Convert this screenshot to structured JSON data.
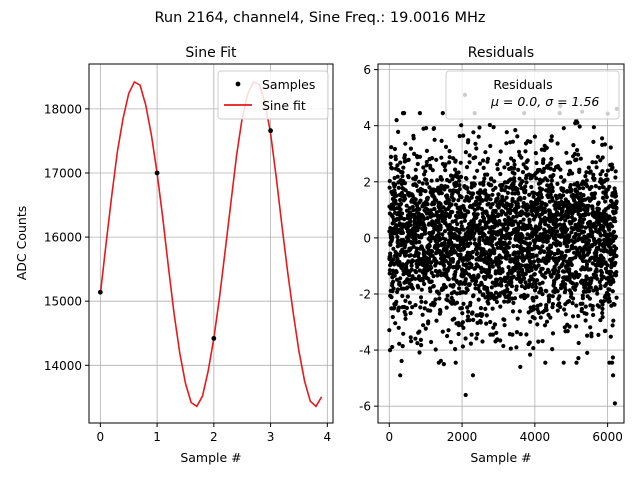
{
  "figure": {
    "suptitle": "Run 2164, channel4, Sine Freq.: 19.0016 MHz"
  },
  "chart_data": [
    {
      "type": "line",
      "title": "Sine Fit",
      "xlabel": "Sample #",
      "ylabel": "ADC Counts",
      "xlim": [
        -0.2,
        4.1
      ],
      "ylim": [
        13100,
        18700
      ],
      "xticks": [
        0,
        1,
        2,
        3,
        4
      ],
      "yticks": [
        14000,
        15000,
        16000,
        17000,
        18000
      ],
      "grid": true,
      "legend": {
        "location": "top-right",
        "entries": [
          "Samples",
          "Sine fit"
        ]
      },
      "series": [
        {
          "name": "Samples",
          "style": "points",
          "color": "#000000",
          "x": [
            0,
            1,
            2,
            3
          ],
          "y": [
            15140,
            17000,
            14420,
            17660
          ]
        },
        {
          "name": "Sine fit",
          "style": "line",
          "color": "#e41a1c",
          "x": [
            0,
            0.1,
            0.2,
            0.3,
            0.4,
            0.5,
            0.6,
            0.7,
            0.8,
            0.9,
            1.0,
            1.1,
            1.2,
            1.3,
            1.4,
            1.5,
            1.6,
            1.7,
            1.8,
            1.9,
            2.0,
            2.1,
            2.2,
            2.3,
            2.4,
            2.5,
            2.6,
            2.7,
            2.8,
            2.9,
            3.0,
            3.1,
            3.2,
            3.3,
            3.4,
            3.5,
            3.6,
            3.7,
            3.8,
            3.9
          ],
          "y": [
            15110,
            15890,
            16640,
            17330,
            17850,
            18240,
            18420,
            18370,
            18060,
            17590,
            17000,
            16300,
            15530,
            14800,
            14190,
            13720,
            13420,
            13360,
            13520,
            13910,
            14420,
            15060,
            15790,
            16530,
            17270,
            17860,
            18240,
            18420,
            18380,
            18100,
            17620,
            16930,
            16180,
            15460,
            14810,
            14220,
            13750,
            13440,
            13360,
            13510
          ]
        }
      ]
    },
    {
      "type": "scatter",
      "title": "Residuals",
      "xlabel": "Sample #",
      "ylabel": "",
      "xlim": [
        -310,
        6450
      ],
      "ylim": [
        -6.6,
        6.2
      ],
      "xticks": [
        0,
        2000,
        4000,
        6000
      ],
      "yticks": [
        -6,
        -4,
        -2,
        0,
        2,
        4,
        6
      ],
      "grid": true,
      "legend": {
        "location": "top-right",
        "entries": [
          "Residuals",
          "μ = 0.0, σ = 1.56"
        ]
      },
      "stats": {
        "mean": 0.0,
        "sigma": 1.56
      },
      "n_points": 6250,
      "outliers": [
        {
          "x": 300,
          "y": -4.9
        },
        {
          "x": 2100,
          "y": -5.6
        },
        {
          "x": 6200,
          "y": -5.9
        },
        {
          "x": 2080,
          "y": 5.1
        },
        {
          "x": 6250,
          "y": 4.6
        },
        {
          "x": 6150,
          "y": -4.9
        },
        {
          "x": 2300,
          "y": -4.9
        },
        {
          "x": 5300,
          "y": 4.5
        },
        {
          "x": 200,
          "y": 4.2
        },
        {
          "x": 3600,
          "y": -4.6
        },
        {
          "x": 4700,
          "y": 4.7
        },
        {
          "x": 1500,
          "y": -4.5
        }
      ]
    }
  ]
}
